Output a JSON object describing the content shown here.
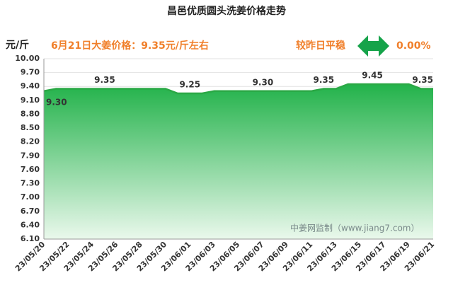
{
  "chart_data": {
    "type": "area",
    "title": "昌邑优质圆头洗姜价格走势",
    "y_label": "元/斤",
    "headline": "6月21日大姜价格：9.35元/斤左右",
    "trend_text": "较昨日平稳",
    "change": "0.00%",
    "watermark": "中姜网监制（www.jiang7.com）",
    "categories": [
      "23/05/20",
      null,
      "23/05/22",
      null,
      "23/05/24",
      null,
      "23/05/26",
      null,
      "23/05/28",
      null,
      "23/05/30",
      null,
      "23/06/01",
      null,
      "23/06/03",
      null,
      "23/06/05",
      null,
      "23/06/07",
      null,
      "23/06/09",
      null,
      "23/06/11",
      null,
      "23/06/13",
      null,
      "23/06/15",
      null,
      "23/06/17",
      null,
      "23/06/19",
      null,
      "23/06/21"
    ],
    "values": [
      9.3,
      9.35,
      9.35,
      9.35,
      9.35,
      9.35,
      9.35,
      9.35,
      9.35,
      9.35,
      9.35,
      9.25,
      9.25,
      9.25,
      9.3,
      9.3,
      9.3,
      9.3,
      9.3,
      9.3,
      9.3,
      9.3,
      9.3,
      9.35,
      9.35,
      9.45,
      9.45,
      9.45,
      9.45,
      9.45,
      9.45,
      9.35,
      9.35
    ],
    "value_labels": [
      "9.30",
      null,
      null,
      null,
      null,
      "9.35",
      null,
      null,
      null,
      null,
      null,
      null,
      "9.25",
      null,
      null,
      null,
      null,
      null,
      "9.30",
      null,
      null,
      null,
      null,
      "9.35",
      null,
      null,
      null,
      "9.45",
      null,
      null,
      null,
      null,
      "9.35"
    ],
    "color": "#2aa845",
    "ylim": [
      6.1,
      10.0
    ],
    "yticks": [
      {
        "value": 6.1,
        "label": "6.10"
      },
      {
        "value": 6.4,
        "label": "6.40"
      },
      {
        "value": 6.7,
        "label": "6.70"
      },
      {
        "value": 7.0,
        "label": "7.00"
      },
      {
        "value": 7.3,
        "label": "7.30"
      },
      {
        "value": 7.6,
        "label": "7.60"
      },
      {
        "value": 7.9,
        "label": "7.90"
      },
      {
        "value": 8.2,
        "label": "8.20"
      },
      {
        "value": 8.5,
        "label": "8.50"
      },
      {
        "value": 8.8,
        "label": "8.80"
      },
      {
        "value": 9.1,
        "label": "9.10"
      },
      {
        "value": 9.4,
        "label": "9.40"
      },
      {
        "value": 9.7,
        "label": "9.70"
      },
      {
        "value": 10.0,
        "label": "10.00"
      }
    ],
    "grid": true
  }
}
